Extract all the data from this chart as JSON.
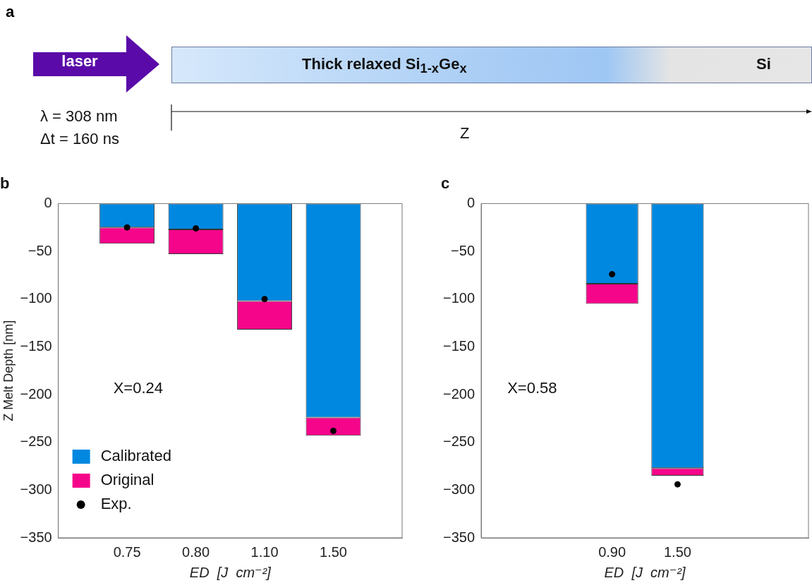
{
  "chart_data": [
    {
      "type": "other",
      "title": "a",
      "annotations": [
        "laser",
        "Thick relaxed Si$_{1-x}$Ge$_{x}$",
        "Si",
        "λ = 308 nm",
        "Δt = 160 ns",
        "Z"
      ]
    },
    {
      "type": "bar",
      "title": "b",
      "xlabel": "ED  [J  cm⁻²]",
      "ylabel": "Z Melt Depth [nm]",
      "categories": [
        null,
        "0.75",
        "0.80",
        "1.10",
        "1.50",
        null
      ],
      "stacked": true,
      "ylim": [
        -350,
        0
      ],
      "yticks": [
        0,
        -50,
        -100,
        -150,
        -200,
        -250,
        -300,
        -350
      ],
      "grid": false,
      "legend": "bottom left",
      "annotations": [
        "X=0.24"
      ],
      "series": [
        {
          "name": "Calibrated",
          "color": "#0088e0",
          "values": [
            null,
            -25,
            -27,
            -102,
            -224,
            null
          ]
        },
        {
          "name": "Original",
          "color": "#f5058a",
          "values": [
            null,
            -17,
            -26,
            -30,
            -19,
            null
          ]
        },
        {
          "name": "Exp.",
          "type": "scatter",
          "color": "#000000",
          "marker": "circle",
          "x": [
            "0.75",
            "0.80",
            "1.10",
            "1.50"
          ],
          "values": [
            -25,
            -26,
            -100,
            -238
          ]
        }
      ]
    },
    {
      "type": "bar",
      "title": "c",
      "xlabel": "ED  [J  cm⁻²]",
      "categories": [
        null,
        null,
        "0.90",
        "1.50",
        null,
        null
      ],
      "stacked": true,
      "ylim": [
        -350,
        0
      ],
      "yticks": [
        0,
        -50,
        -100,
        -150,
        -200,
        -250,
        -300,
        -350
      ],
      "grid": false,
      "annotations": [
        "X=0.58"
      ],
      "series": [
        {
          "color": "#0088e0",
          "values": [
            null,
            null,
            -84,
            -277,
            null,
            null
          ]
        },
        {
          "color": "#f5058a",
          "values": [
            null,
            null,
            -21,
            -8,
            null,
            null
          ]
        },
        {
          "type": "scatter",
          "color": "#000000",
          "marker": "circle",
          "x": [
            "0.90",
            "1.50"
          ],
          "values": [
            -74,
            -294
          ]
        }
      ]
    }
  ]
}
